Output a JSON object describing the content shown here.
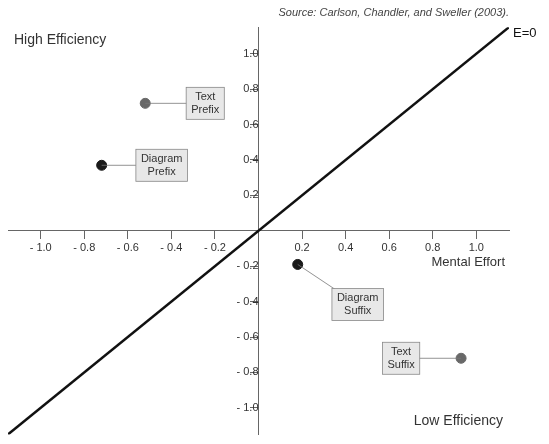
{
  "chart_data": {
    "type": "scatter",
    "subtitle": "Source: Carlson, Chandler, and Sweller (2003).",
    "xlabel": "Mental Effort",
    "annotations": [
      "High Efficiency",
      "Low Efficiency",
      "E=0"
    ],
    "xlim": [
      -1.15,
      1.15
    ],
    "ylim": [
      -1.15,
      1.15
    ],
    "xticks": [
      {
        "value": -1.0,
        "label": "- 1.0"
      },
      {
        "value": -0.8,
        "label": "- 0.8"
      },
      {
        "value": -0.6,
        "label": "- 0.6"
      },
      {
        "value": -0.4,
        "label": "- 0.4"
      },
      {
        "value": -0.2,
        "label": "- 0.2"
      },
      0.2,
      0.4,
      0.6,
      0.8,
      {
        "value": 1.0,
        "label": "1.0"
      }
    ],
    "yticks": [
      {
        "value": 1.0,
        "label": "1.0"
      },
      0.8,
      0.6,
      0.4,
      0.2,
      {
        "value": -0.2,
        "label": "- 0.2"
      },
      {
        "value": -0.4,
        "label": "- 0.4"
      },
      {
        "value": -0.6,
        "label": "- 0.6"
      },
      {
        "value": -0.8,
        "label": "- 0.8"
      },
      {
        "value": -1.0,
        "label": "- 1.0"
      }
    ],
    "grid": false,
    "series": [
      {
        "type": "line",
        "color": "#111111",
        "x": [
          -1.15,
          1.15
        ],
        "values": [
          -1.15,
          1.15
        ]
      },
      {
        "type": "scatter",
        "x": [
          -0.52,
          -0.72,
          0.18,
          0.93
        ],
        "values": [
          0.72,
          0.37,
          -0.19,
          -0.72
        ],
        "colors": [
          "#686868",
          "#1a1a1a",
          "#1a1a1a",
          "#686868"
        ],
        "labels": [
          "Text\nPrefix",
          "Diagram\nPrefix",
          "Diagram\nSuffix",
          "Text\nSuffix"
        ]
      }
    ]
  }
}
